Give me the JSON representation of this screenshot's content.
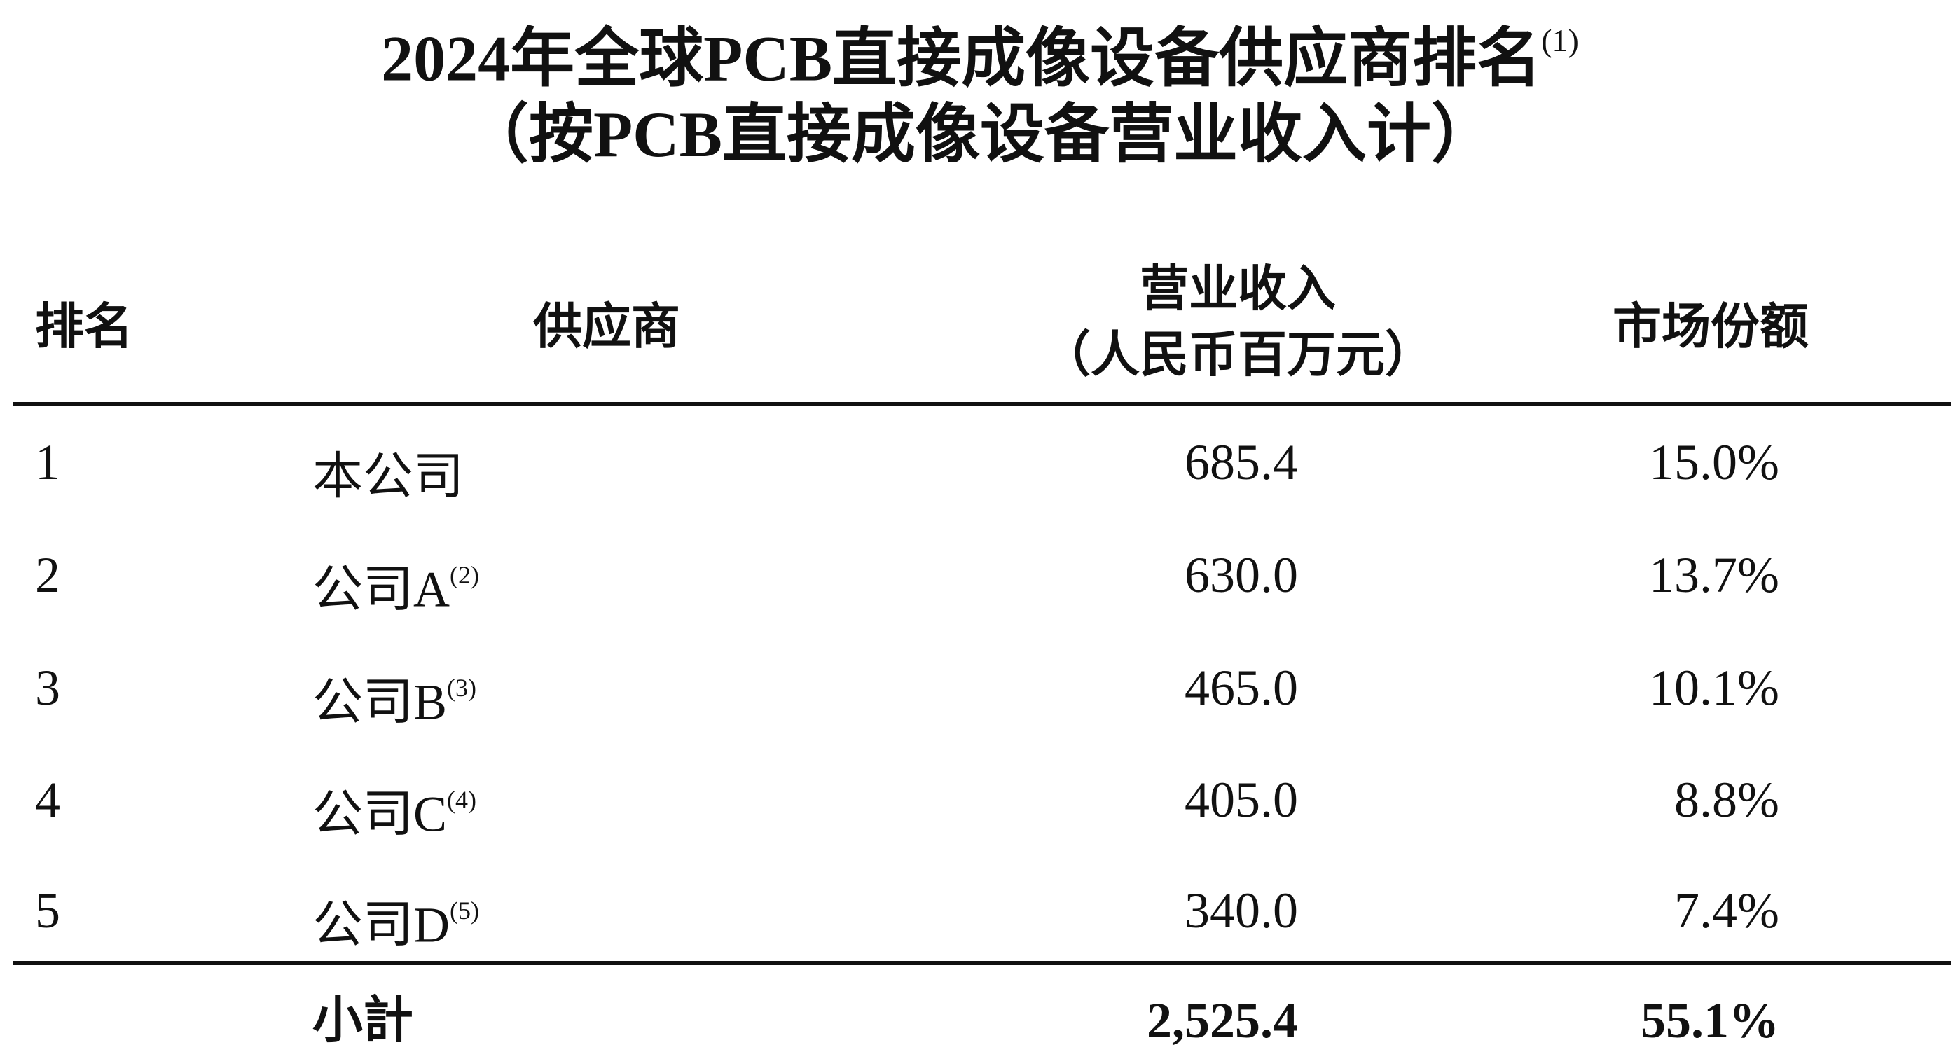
{
  "title": {
    "line1": "2024年全球PCB直接成像设备供应商排名",
    "line1_note": "(1)",
    "line2": "（按PCB直接成像设备营业收入计）"
  },
  "table": {
    "headers": {
      "rank": "排名",
      "supplier": "供应商",
      "revenue_line1": "营业收入",
      "revenue_line2": "（人民币百万元）",
      "share": "市场份额"
    },
    "rows": [
      {
        "rank": "1",
        "supplier": "本公司",
        "note": "",
        "revenue": "685.4",
        "share": "15.0%"
      },
      {
        "rank": "2",
        "supplier": "公司A",
        "note": "(2)",
        "revenue": "630.0",
        "share": "13.7%"
      },
      {
        "rank": "3",
        "supplier": "公司B",
        "note": "(3)",
        "revenue": "465.0",
        "share": "10.1%"
      },
      {
        "rank": "4",
        "supplier": "公司C",
        "note": "(4)",
        "revenue": "405.0",
        "share": "8.8%"
      },
      {
        "rank": "5",
        "supplier": "公司D",
        "note": "(5)",
        "revenue": "340.0",
        "share": "7.4%"
      }
    ],
    "subtotal": {
      "label": "小計",
      "revenue": "2,525.4",
      "share": "55.1%"
    }
  }
}
